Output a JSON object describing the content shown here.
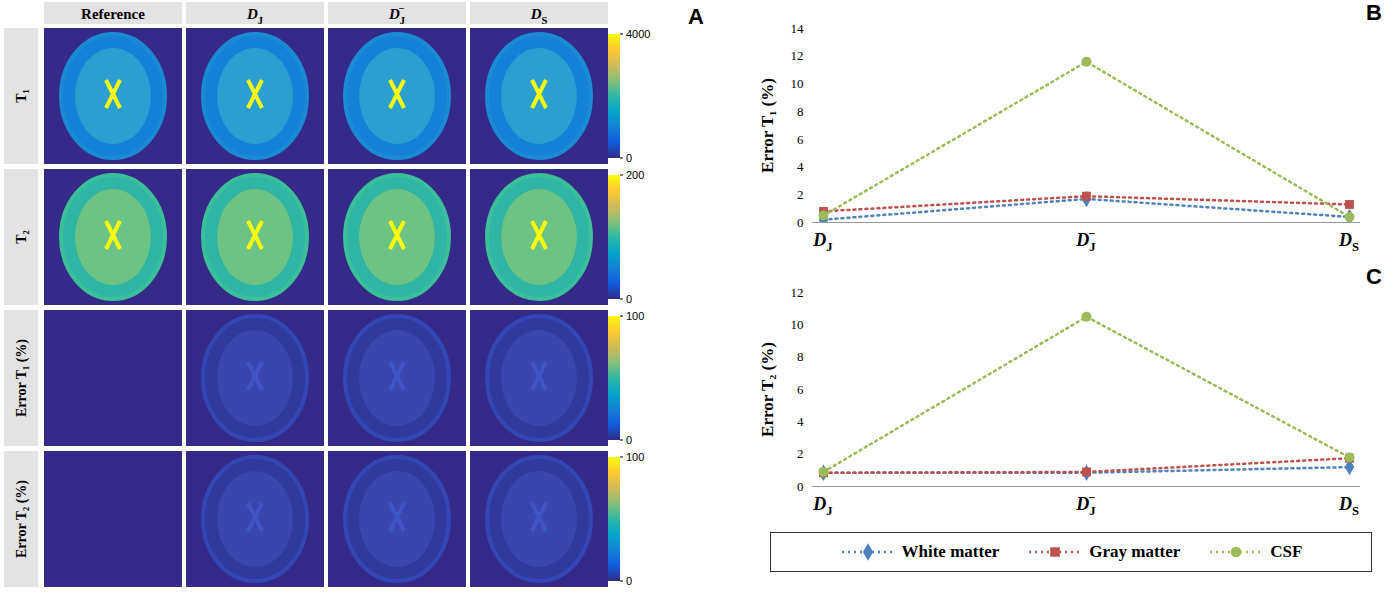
{
  "image_grid": {
    "panel": "A",
    "columns": [
      "Reference",
      "DJ",
      "DJ−",
      "DS"
    ],
    "rows": [
      {
        "label": "T₁",
        "colorbar": {
          "range": [
            0,
            4000
          ],
          "ticks": [
            0,
            4000
          ]
        }
      },
      {
        "label": "T₂",
        "colorbar": {
          "range": [
            0,
            200
          ],
          "ticks": [
            0,
            200
          ]
        }
      },
      {
        "label": "Error T₁ (%)",
        "colorbar": {
          "range": [
            0,
            100
          ],
          "ticks": [
            0,
            100
          ]
        }
      },
      {
        "label": "Error T₂ (%)",
        "colorbar": {
          "range": [
            0,
            100
          ],
          "ticks": [
            0,
            100
          ]
        }
      }
    ]
  },
  "chart_data": [
    {
      "panel": "B",
      "type": "line",
      "y_label": "Error T₁ (%)",
      "categories": [
        "DJ",
        "DJ−",
        "DS"
      ],
      "ylim": [
        0,
        14
      ],
      "yticks": [
        0,
        2,
        4,
        6,
        8,
        10,
        12,
        14
      ],
      "series": [
        {
          "name": "White matter",
          "color": "#4f81bd",
          "marker": "diamond",
          "line_style": "dotted",
          "values": [
            0.2,
            1.7,
            0.4
          ]
        },
        {
          "name": "Gray matter",
          "color": "#c0504d",
          "marker": "square",
          "line_style": "dotted",
          "values": [
            0.8,
            1.9,
            1.3
          ]
        },
        {
          "name": "CSF",
          "color": "#9bbb59",
          "marker": "circle",
          "line_style": "dotted",
          "values": [
            0.5,
            11.6,
            0.4
          ]
        }
      ]
    },
    {
      "panel": "C",
      "type": "line",
      "y_label": "Error T₂ (%)",
      "categories": [
        "DJ",
        "DJ−",
        "DS"
      ],
      "ylim": [
        0,
        12
      ],
      "yticks": [
        0,
        2,
        4,
        6,
        8,
        10,
        12
      ],
      "legend": "bottom",
      "series": [
        {
          "name": "White matter",
          "color": "#4f81bd",
          "marker": "diamond",
          "line_style": "dotted",
          "values": [
            0.85,
            0.85,
            1.2
          ]
        },
        {
          "name": "Gray matter",
          "color": "#c0504d",
          "marker": "square",
          "line_style": "dotted",
          "values": [
            0.85,
            0.9,
            1.75
          ]
        },
        {
          "name": "CSF",
          "color": "#9bbb59",
          "marker": "circle",
          "line_style": "dotted",
          "values": [
            0.9,
            10.5,
            1.8
          ]
        }
      ]
    }
  ]
}
